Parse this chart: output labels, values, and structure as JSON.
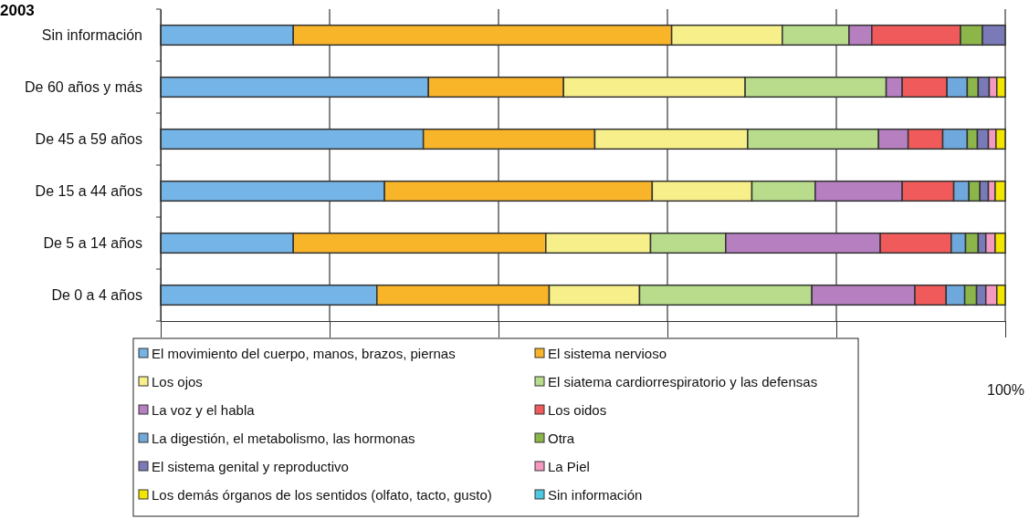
{
  "chart_data": {
    "type": "bar",
    "orientation": "horizontal",
    "stacked": true,
    "title": "2003",
    "categories": [
      "Sin información",
      "De 60 años y más",
      "De 45 a 59 años",
      "De 15 a 44 años",
      "De 5 a 14 años",
      "De 0 a 4 años"
    ],
    "xlim": [
      0,
      100
    ],
    "xticks": [
      {
        "value": 0,
        "label": null
      },
      {
        "value": 20,
        "label": null
      },
      {
        "value": 40,
        "label": null
      },
      {
        "value": 60,
        "label": null
      },
      {
        "value": 80,
        "label": null
      },
      {
        "value": 100,
        "label": "100%"
      }
    ],
    "grid": "x",
    "legend": "bottom",
    "series": [
      {
        "name": "El movimiento del cuerpo, manos, brazos, piernas",
        "color": "#74b4e6",
        "values": [
          15.7,
          31.7,
          31.1,
          26.5,
          15.7,
          25.6
        ]
      },
      {
        "name": "El sistema nervioso",
        "color": "#f9b52a",
        "values": [
          44.8,
          16.0,
          20.3,
          31.7,
          29.9,
          20.4
        ]
      },
      {
        "name": "Los ojos",
        "color": "#f7f08a",
        "values": [
          13.1,
          21.5,
          18.1,
          11.8,
          12.4,
          10.7
        ]
      },
      {
        "name": "El siatema cardiorrespiratorio y las defensas",
        "color": "#b8dc8c",
        "values": [
          7.9,
          16.7,
          15.5,
          7.5,
          8.9,
          20.4
        ]
      },
      {
        "name": "La voz y el habla",
        "color": "#b67fc0",
        "values": [
          2.7,
          1.9,
          3.5,
          10.3,
          18.3,
          12.2
        ]
      },
      {
        "name": "Los oidos",
        "color": "#f05a5a",
        "values": [
          10.5,
          5.3,
          4.1,
          6.1,
          8.4,
          3.7
        ]
      },
      {
        "name": "La digestión, el metabolismo, las hormonas",
        "color": "#6fa8dc",
        "values": [
          0,
          2.4,
          2.9,
          1.8,
          1.7,
          2.2
        ]
      },
      {
        "name": "Otra",
        "color": "#8cb64a",
        "values": [
          2.6,
          1.3,
          1.2,
          1.3,
          1.5,
          1.4
        ]
      },
      {
        "name": "El sistema genital y reproductivo",
        "color": "#7a7ab8",
        "values": [
          2.7,
          1.3,
          1.3,
          1.0,
          0.9,
          1.1
        ]
      },
      {
        "name": "La Piel",
        "color": "#f49ac0",
        "values": [
          0,
          0.9,
          0.9,
          0.8,
          1.1,
          1.3
        ]
      },
      {
        "name": "Los demás órganos de los sentidos (olfato, tacto, gusto)",
        "color": "#f2e600",
        "values": [
          0,
          1.0,
          1.1,
          1.2,
          1.2,
          1.0
        ]
      },
      {
        "name": "Sin información",
        "color": "#4cc8e0",
        "values": [
          0,
          0,
          0,
          0,
          0,
          0
        ]
      }
    ]
  }
}
